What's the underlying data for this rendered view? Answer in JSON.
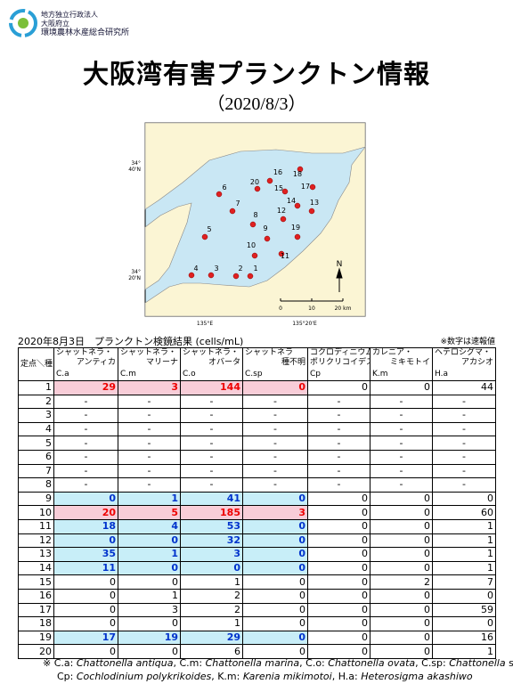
{
  "header": {
    "org": [
      "地方独立行政法人",
      "大阪府立",
      "環境農林水産総合研究所"
    ],
    "title": "大阪湾有害プランクトン情報",
    "subtitle": "（2020/8/3）"
  },
  "map": {
    "lat_labels": [
      [
        "34°",
        "40'N"
      ],
      [
        "34°",
        "20'N"
      ]
    ],
    "lon_labels": [
      "135°E",
      "135°20'E"
    ],
    "scale_labels": [
      "0",
      "10",
      "20 km"
    ],
    "north": "N",
    "stations": [
      "1",
      "2",
      "3",
      "4",
      "5",
      "6",
      "7",
      "8",
      "9",
      "10",
      "11",
      "12",
      "13",
      "14",
      "15",
      "16",
      "17",
      "18",
      "19",
      "20"
    ]
  },
  "table": {
    "caption": "2020年8月3日　プランクトン検鏡結果 (cells/mL)",
    "note": "※数字は速報値",
    "corner": "定点＼種",
    "columns": [
      {
        "name": [
          "シャットネラ・",
          "アンティカ"
        ],
        "abbr": "C.a"
      },
      {
        "name": [
          "シャットネラ・",
          "マリーナ"
        ],
        "abbr": "C.m"
      },
      {
        "name": [
          "シャットネラ・",
          "オバータ"
        ],
        "abbr": "C.o"
      },
      {
        "name": [
          "シャットネラ",
          "種不明"
        ],
        "abbr": "C.sp"
      },
      {
        "name": [
          "コクロディニウム・",
          "ポリクリコイデス"
        ],
        "abbr": "Cp"
      },
      {
        "name": [
          "カレニア・",
          "ミキモトイ"
        ],
        "abbr": "K.m"
      },
      {
        "name": [
          "ヘテロシグマ・",
          "アカシオ"
        ],
        "abbr": "H.a"
      }
    ],
    "rows": [
      {
        "station": 1,
        "highlight": "red",
        "values": [
          29,
          3,
          144,
          0,
          0,
          0,
          44
        ]
      },
      {
        "station": 2,
        "highlight": "none",
        "values": [
          "-",
          "-",
          "-",
          "-",
          "-",
          "-",
          "-"
        ]
      },
      {
        "station": 3,
        "highlight": "none",
        "values": [
          "-",
          "-",
          "-",
          "-",
          "-",
          "-",
          "-"
        ]
      },
      {
        "station": 4,
        "highlight": "none",
        "values": [
          "-",
          "-",
          "-",
          "-",
          "-",
          "-",
          "-"
        ]
      },
      {
        "station": 5,
        "highlight": "none",
        "values": [
          "-",
          "-",
          "-",
          "-",
          "-",
          "-",
          "-"
        ]
      },
      {
        "station": 6,
        "highlight": "none",
        "values": [
          "-",
          "-",
          "-",
          "-",
          "-",
          "-",
          "-"
        ]
      },
      {
        "station": 7,
        "highlight": "none",
        "values": [
          "-",
          "-",
          "-",
          "-",
          "-",
          "-",
          "-"
        ]
      },
      {
        "station": 8,
        "highlight": "none",
        "values": [
          "-",
          "-",
          "-",
          "-",
          "-",
          "-",
          "-"
        ]
      },
      {
        "station": 9,
        "highlight": "blue",
        "values": [
          0,
          1,
          41,
          0,
          0,
          0,
          0
        ]
      },
      {
        "station": 10,
        "highlight": "red",
        "values": [
          20,
          5,
          185,
          3,
          0,
          0,
          60
        ]
      },
      {
        "station": 11,
        "highlight": "blue",
        "values": [
          18,
          4,
          53,
          0,
          0,
          0,
          1
        ]
      },
      {
        "station": 12,
        "highlight": "blue",
        "values": [
          0,
          0,
          32,
          0,
          0,
          0,
          1
        ]
      },
      {
        "station": 13,
        "highlight": "blue",
        "values": [
          35,
          1,
          3,
          0,
          0,
          0,
          1
        ]
      },
      {
        "station": 14,
        "highlight": "blue",
        "values": [
          11,
          0,
          0,
          0,
          0,
          0,
          1
        ]
      },
      {
        "station": 15,
        "highlight": "none",
        "values": [
          0,
          0,
          1,
          0,
          0,
          2,
          7
        ]
      },
      {
        "station": 16,
        "highlight": "none",
        "values": [
          0,
          1,
          2,
          0,
          0,
          0,
          0
        ]
      },
      {
        "station": 17,
        "highlight": "none",
        "values": [
          0,
          3,
          2,
          0,
          0,
          0,
          59
        ]
      },
      {
        "station": 18,
        "highlight": "none",
        "values": [
          0,
          0,
          1,
          0,
          0,
          0,
          0
        ]
      },
      {
        "station": 19,
        "highlight": "blue",
        "values": [
          17,
          19,
          29,
          0,
          0,
          0,
          16
        ]
      },
      {
        "station": 20,
        "highlight": "none",
        "values": [
          0,
          0,
          6,
          0,
          0,
          0,
          1
        ]
      }
    ]
  },
  "footnote": [
    [
      {
        "text": "※ C.a: "
      },
      {
        "text": "Chattonella antiqua",
        "italic": true
      },
      {
        "text": ", C.m: "
      },
      {
        "text": "Chattonella marina",
        "italic": true
      },
      {
        "text": ", C.o: "
      },
      {
        "text": "Chattonella ovata",
        "italic": true
      },
      {
        "text": ", C.sp: "
      },
      {
        "text": "Chattonella",
        "italic": true
      },
      {
        "text": " sp."
      }
    ],
    [
      {
        "text": "Cp: "
      },
      {
        "text": "Cochlodinium polykrikoides",
        "italic": true
      },
      {
        "text": ",  K.m: "
      },
      {
        "text": "Karenia mikimotoi",
        "italic": true
      },
      {
        "text": ",  H.a: "
      },
      {
        "text": "Heterosigma akashiwo",
        "italic": true
      }
    ]
  ]
}
